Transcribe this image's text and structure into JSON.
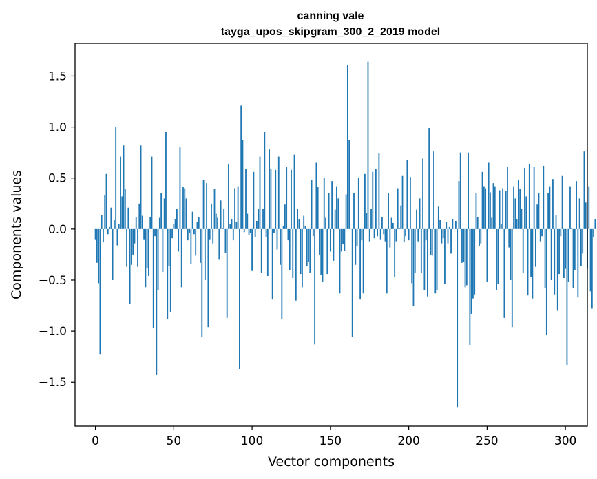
{
  "chart_data": {
    "type": "bar",
    "title_line1": "canning vale",
    "title_line2": "tayga_upos_skipgram_300_2_2019 model",
    "xlabel": "Vector components",
    "ylabel": "Components values",
    "xlim": [
      -13,
      314
    ],
    "ylim": [
      -1.93,
      1.82
    ],
    "xticks": [
      0,
      50,
      100,
      150,
      200,
      250,
      300
    ],
    "xtick_labels": [
      "0",
      "50",
      "100",
      "150",
      "200",
      "250",
      "300"
    ],
    "yticks": [
      -1.5,
      -1.0,
      -0.5,
      0.0,
      0.5,
      1.0,
      1.5
    ],
    "ytick_labels": [
      "−1.5",
      "−1.0",
      "−0.5",
      "0.0",
      "0.5",
      "1.0",
      "1.5"
    ],
    "bar_color": "#1f77b4",
    "values": [
      -0.1,
      -0.33,
      -0.53,
      -1.23,
      0.14,
      -0.13,
      0.33,
      0.54,
      -0.05,
      0.02,
      0.21,
      -0.5,
      0.09,
      1.0,
      -0.16,
      0.05,
      0.71,
      0.32,
      0.82,
      0.39,
      -0.37,
      0.21,
      -0.73,
      -0.35,
      -0.25,
      -0.14,
      0.12,
      -0.37,
      0.25,
      0.82,
      0.13,
      -0.1,
      -0.57,
      -0.38,
      -0.46,
      0.12,
      0.71,
      -0.97,
      -0.07,
      -1.43,
      -0.6,
      0.11,
      0.35,
      -0.42,
      0.3,
      0.95,
      -0.88,
      -0.36,
      -0.81,
      -0.09,
      0.05,
      0.1,
      0.2,
      -0.22,
      0.8,
      -0.57,
      0.41,
      0.4,
      0.3,
      -0.11,
      -0.04,
      -0.34,
      0.17,
      -0.05,
      -0.26,
      0.07,
      0.12,
      -0.33,
      -1.06,
      0.48,
      -0.5,
      0.45,
      -0.96,
      -0.1,
      0.25,
      -0.14,
      0.39,
      0.15,
      0.11,
      -0.3,
      0.28,
      0.01,
      0.2,
      -0.23,
      -0.87,
      0.64,
      0.05,
      0.1,
      -0.11,
      0.4,
      0.07,
      0.42,
      -1.37,
      1.21,
      0.87,
      -0.03,
      0.59,
      0.15,
      -0.06,
      -0.04,
      -0.41,
      0.56,
      -0.08,
      0.08,
      0.2,
      0.71,
      -0.43,
      0.2,
      0.95,
      -0.08,
      -0.46,
      0.78,
      0.59,
      -0.69,
      -0.04,
      0.58,
      -0.2,
      0.71,
      -0.35,
      -0.88,
      0.03,
      0.24,
      0.61,
      -0.11,
      -0.4,
      0.58,
      -0.48,
      0.73,
      -0.7,
      0.2,
      0.1,
      -0.44,
      -0.57,
      0.13,
      0.03,
      -0.36,
      -0.32,
      -0.43,
      0.48,
      -0.07,
      -1.13,
      0.65,
      0.41,
      -0.25,
      -0.45,
      -0.52,
      0.5,
      0.11,
      -0.44,
      0.35,
      -0.22,
      0.47,
      -0.31,
      0.19,
      0.42,
      0.3,
      -0.63,
      -0.22,
      -0.15,
      -0.21,
      0.34,
      1.61,
      0.87,
      0.0,
      -1.06,
      0.35,
      -0.35,
      -0.17,
      0.5,
      -0.69,
      -0.11,
      -0.63,
      0.54,
      0.16,
      1.64,
      -0.12,
      0.2,
      0.56,
      -0.09,
      0.59,
      -0.07,
      0.74,
      -0.1,
      0.12,
      -0.05,
      -0.12,
      -0.63,
      0.35,
      -0.18,
      0.11,
      0.06,
      -0.47,
      -0.12,
      0.4,
      0.01,
      0.23,
      0.52,
      -0.13,
      -0.07,
      0.68,
      -0.11,
      0.51,
      -0.53,
      -0.75,
      -0.43,
      0.19,
      -0.12,
      0.3,
      -0.43,
      0.69,
      -0.6,
      -0.11,
      -0.66,
      0.99,
      -0.25,
      -0.26,
      0.76,
      -0.63,
      -0.6,
      0.22,
      0.09,
      -0.14,
      -0.09,
      -0.54,
      0.07,
      -0.14,
      0.02,
      -0.24,
      0.1,
      0.0,
      0.08,
      -1.75,
      0.47,
      0.75,
      -0.33,
      -0.32,
      -0.57,
      -0.55,
      0.75,
      -1.14,
      -0.83,
      -0.68,
      -0.64,
      0.35,
      0.12,
      -0.17,
      -0.14,
      0.56,
      0.42,
      0.4,
      -0.52,
      0.65,
      0.36,
      0.11,
      0.45,
      0.42,
      -0.6,
      -0.54,
      0.38,
      0.05,
      0.4,
      -0.87,
      0.37,
      0.61,
      -0.18,
      -0.5,
      -0.96,
      0.42,
      0.3,
      0.1,
      0.48,
      0.39,
      0.2,
      -0.43,
      0.6,
      0.32,
      -0.65,
      0.64,
      -0.47,
      -0.68,
      0.61,
      -0.37,
      0.24,
      0.35,
      -0.12,
      -0.07,
      0.62,
      -0.58,
      -1.04,
      0.35,
      0.42,
      -0.5,
      0.49,
      -0.64,
      0.14,
      -0.8,
      -0.44,
      -0.07,
      0.52,
      -0.48,
      -0.39,
      -1.33,
      -0.52,
      0.42,
      0.01,
      -0.58,
      -0.4,
      0.47,
      -0.67,
      0.3,
      -0.36,
      -0.24,
      0.76,
      0.26,
      -0.39,
      0.42,
      -0.61,
      -0.78,
      -0.08,
      0.1
    ]
  }
}
